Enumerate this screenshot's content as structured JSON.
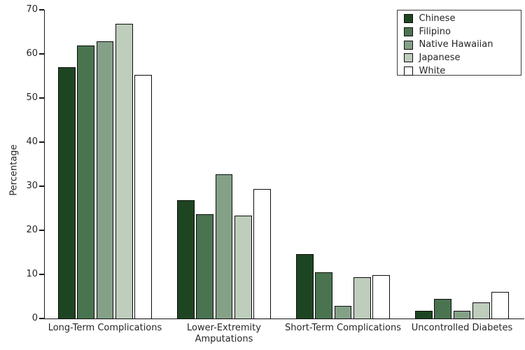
{
  "chart_data": {
    "type": "bar",
    "title": "",
    "ylabel": "Percentage",
    "xlabel": "",
    "ylim": [
      0,
      70
    ],
    "yticks": [
      0,
      10,
      20,
      30,
      40,
      50,
      60,
      70
    ],
    "grid": false,
    "legend_position": "upper-right",
    "categories": [
      "Long-Term Complications",
      "Lower-Extremity\nAmputations",
      "Short-Term Complications",
      "Uncontrolled Diabetes"
    ],
    "series": [
      {
        "name": "Chinese",
        "color": "#1e4522",
        "values": [
          57.0,
          26.8,
          14.6,
          1.8
        ]
      },
      {
        "name": "Filipino",
        "color": "#4a7450",
        "values": [
          61.9,
          23.7,
          10.4,
          4.5
        ]
      },
      {
        "name": "Native Hawaiian",
        "color": "#84a188",
        "values": [
          62.9,
          32.7,
          2.9,
          1.8
        ]
      },
      {
        "name": "Japanese",
        "color": "#becdbc",
        "values": [
          66.8,
          23.4,
          9.4,
          3.7
        ]
      },
      {
        "name": "White",
        "color": "#ffffff",
        "values": [
          55.3,
          29.4,
          9.8,
          6.1
        ]
      }
    ],
    "bar_border_color": "#000000",
    "axis_color": "#1a1a1a",
    "text_color": "#262626"
  }
}
